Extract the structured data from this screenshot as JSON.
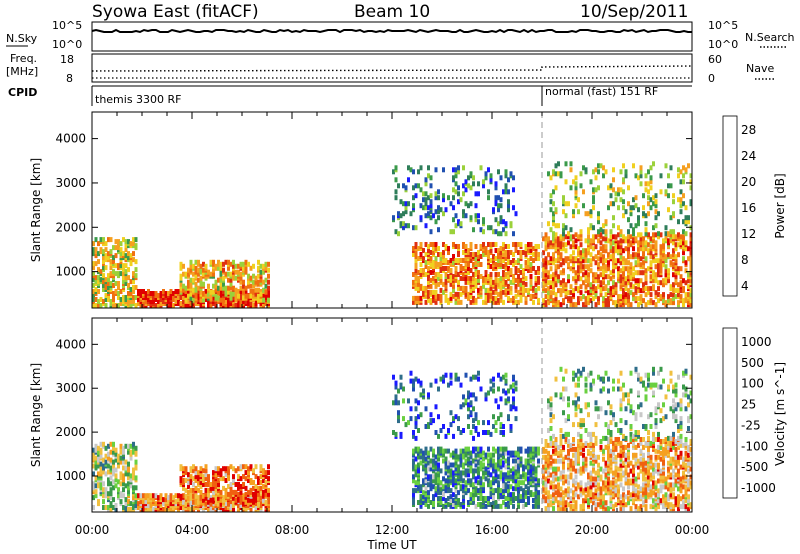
{
  "header": {
    "radar": "Syowa East (fitACF)",
    "beam": "Beam 10",
    "date": "10/Sep/2011"
  },
  "noise_panel": {
    "left_label": "N.Sky",
    "right_label": "N.Search",
    "left_ticks": [
      "10^5",
      "10^0"
    ],
    "right_ticks": [
      "10^5",
      "10^0"
    ]
  },
  "freq_panel": {
    "left_label_1": "Freq.",
    "left_label_2": "[MHz]",
    "right_label": "Nave",
    "left_ticks": [
      "18",
      "8"
    ],
    "right_ticks": [
      "60",
      "0"
    ]
  },
  "cpid_panel": {
    "label": "CPID",
    "modes": [
      "themis 3300 RF",
      "normal (fast) 151 RF"
    ]
  },
  "time_axis": {
    "label": "Time UT",
    "ticks": [
      "00:00",
      "04:00",
      "08:00",
      "12:00",
      "16:00",
      "20:00",
      "00:00"
    ]
  },
  "colors": {
    "power": [
      "#1a1aff",
      "#2050b0",
      "#2e7d5a",
      "#3a9a4a",
      "#9bd13a",
      "#f0d020",
      "#f5a020",
      "#f07010",
      "#e03010",
      "#e00000"
    ],
    "velocity": [
      "#e00000",
      "#f06010",
      "#f5a020",
      "#f0c040",
      "#c8c8c8",
      "#6ad040",
      "#3a9a4a",
      "#2e6d8a",
      "#2050b0",
      "#1a1aff"
    ]
  },
  "chart_data": [
    {
      "type": "heatmap",
      "name": "power",
      "xlabel": "Time UT",
      "ylabel": "Slant Range [km]",
      "xlim": [
        0,
        24
      ],
      "ylim": [
        180,
        4600
      ],
      "yticks": [
        1000,
        2000,
        3000,
        4000
      ],
      "colorbar": {
        "label": "Power [dB]",
        "ticks": [
          "28",
          "24",
          "20",
          "16",
          "12",
          "8",
          "4"
        ],
        "range": [
          0,
          30
        ]
      },
      "mode_change_time": 18.0,
      "features": [
        {
          "t0": 0.0,
          "t1": 1.8,
          "r0": 180,
          "r1": 1700,
          "level": 0.55
        },
        {
          "t0": 1.8,
          "t1": 7.0,
          "r0": 180,
          "r1": 500,
          "level": 0.85
        },
        {
          "t0": 3.5,
          "t1": 7.0,
          "r0": 300,
          "r1": 1200,
          "level": 0.6
        },
        {
          "t0": 12.8,
          "t1": 17.9,
          "r0": 250,
          "r1": 1600,
          "level": 0.7
        },
        {
          "t0": 12.0,
          "t1": 17.0,
          "r0": 1800,
          "r1": 3300,
          "level": 0.25
        },
        {
          "t0": 18.0,
          "t1": 24.0,
          "r0": 200,
          "r1": 1800,
          "level": 0.7
        },
        {
          "t0": 18.2,
          "t1": 24.0,
          "r0": 1800,
          "r1": 3400,
          "level": 0.45
        }
      ]
    },
    {
      "type": "heatmap",
      "name": "velocity",
      "xlabel": "Time UT",
      "ylabel": "Slant Range [km]",
      "xlim": [
        0,
        24
      ],
      "ylim": [
        180,
        4600
      ],
      "yticks": [
        1000,
        2000,
        3000,
        4000
      ],
      "colorbar": {
        "label": "Velocity [m s^-1]",
        "ticks": [
          "1000",
          "500",
          "100",
          "25",
          "-25",
          "-100",
          "-500",
          "-1000"
        ],
        "range": [
          -1000,
          1000
        ]
      },
      "mode_change_time": 18.0,
      "features": [
        {
          "t0": 0.0,
          "t1": 1.8,
          "r0": 180,
          "r1": 1700,
          "level": 0.5
        },
        {
          "t0": 1.8,
          "t1": 7.0,
          "r0": 180,
          "r1": 500,
          "level": 0.25
        },
        {
          "t0": 3.5,
          "t1": 7.0,
          "r0": 300,
          "r1": 1200,
          "level": 0.2
        },
        {
          "t0": 12.8,
          "t1": 17.9,
          "r0": 250,
          "r1": 1600,
          "level": 0.7
        },
        {
          "t0": 12.0,
          "t1": 17.0,
          "r0": 1800,
          "r1": 3300,
          "level": 0.8
        },
        {
          "t0": 18.0,
          "t1": 24.0,
          "r0": 200,
          "r1": 1800,
          "level": 0.3
        },
        {
          "t0": 18.2,
          "t1": 24.0,
          "r0": 1800,
          "r1": 3400,
          "level": 0.55
        }
      ]
    }
  ]
}
